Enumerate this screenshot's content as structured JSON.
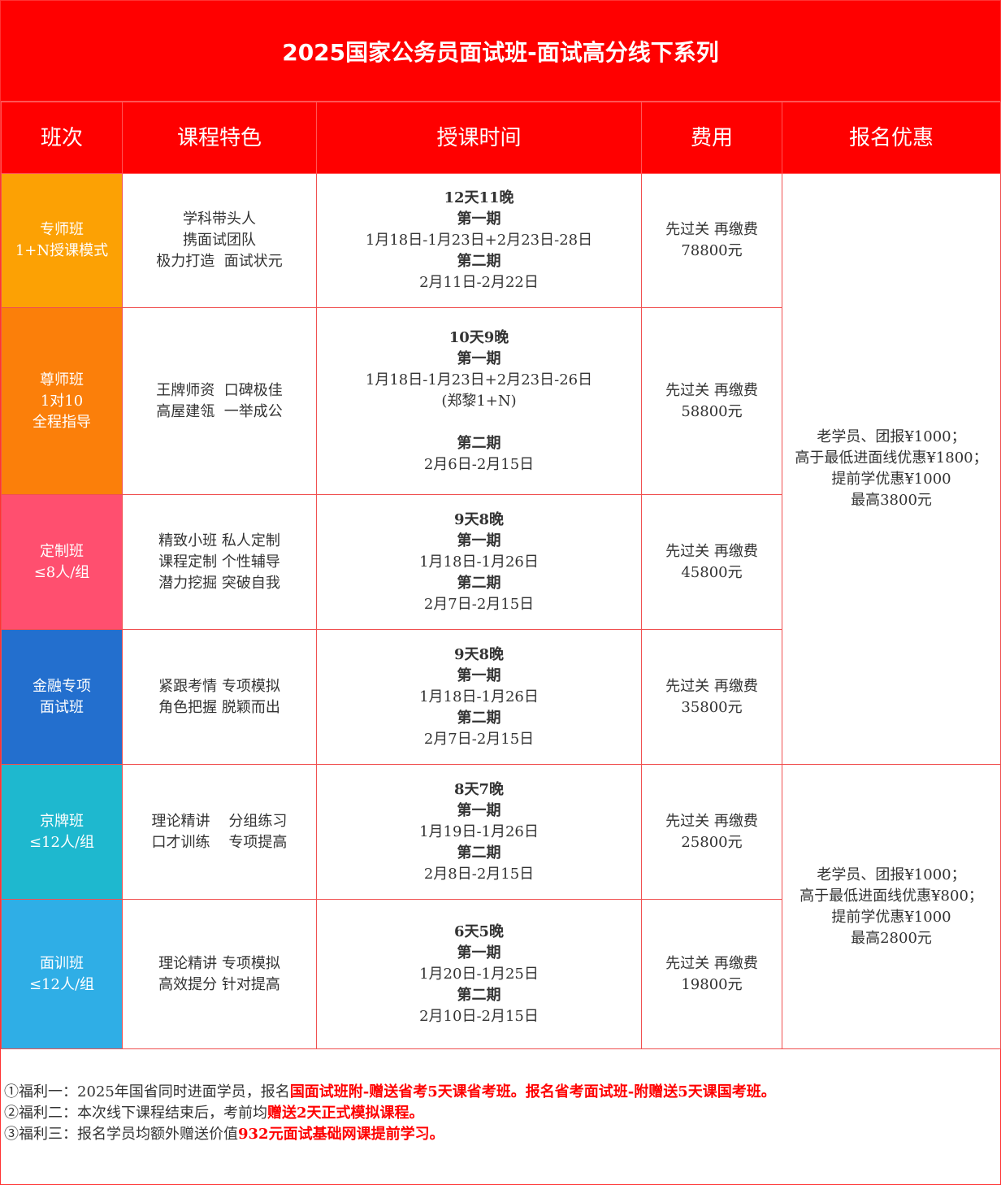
{
  "title": "2025国家公务员面试班-面试高分线下系列",
  "headers": [
    "班次",
    "课程特色",
    "授课时间",
    "费用",
    "报名优惠"
  ],
  "rows": [
    {
      "class": [
        "专师班",
        "1+N授课模式"
      ],
      "color": "#FCA104",
      "features": [
        "学科带头人",
        "携面试团队",
        "极力打造  面试状元"
      ],
      "time": [
        {
          "t": "12天11晚",
          "b": true
        },
        {
          "t": "第一期",
          "b": true
        },
        {
          "t": "1月18日-1月23日+2月23日-28日",
          "b": false
        },
        {
          "t": "第二期",
          "b": true
        },
        {
          "t": "2月11日-2月22日",
          "b": false
        }
      ],
      "fee": [
        "先过关 再缴费",
        "78800元"
      ]
    },
    {
      "class": [
        "尊师班",
        "1对10",
        "全程指导"
      ],
      "color": "#FB7F0A",
      "features": [
        "王牌师资  口碑极佳",
        "高屋建瓴  一举成公"
      ],
      "time": [
        {
          "t": "10天9晚",
          "b": true
        },
        {
          "t": "第一期",
          "b": true
        },
        {
          "t": "1月18日-1月23日+2月23日-26日",
          "b": false
        },
        {
          "t": "(郑黎1+N)",
          "b": false
        },
        {
          "t": " ",
          "b": false
        },
        {
          "t": "第二期",
          "b": true
        },
        {
          "t": "2月6日-2月15日",
          "b": false
        }
      ],
      "fee": [
        "先过关 再缴费",
        "58800元"
      ]
    },
    {
      "class": [
        "定制班",
        "≤8人/组"
      ],
      "color": "#FF4F6F",
      "features": [
        "精致小班 私人定制",
        "课程定制 个性辅导",
        "潜力挖掘 突破自我"
      ],
      "time": [
        {
          "t": "9天8晚",
          "b": true
        },
        {
          "t": "第一期",
          "b": true
        },
        {
          "t": "1月18日-1月26日",
          "b": false
        },
        {
          "t": "第二期",
          "b": true
        },
        {
          "t": "2月7日-2月15日",
          "b": false
        }
      ],
      "fee": [
        "先过关 再缴费",
        "45800元"
      ]
    },
    {
      "class": [
        "金融专项",
        "面试班"
      ],
      "color": "#236FCE",
      "features": [
        "紧跟考情 专项模拟",
        "角色把握 脱颖而出"
      ],
      "time": [
        {
          "t": "9天8晚",
          "b": true
        },
        {
          "t": "第一期",
          "b": true
        },
        {
          "t": "1月18日-1月26日",
          "b": false
        },
        {
          "t": "第二期",
          "b": true
        },
        {
          "t": "2月7日-2月15日",
          "b": false
        }
      ],
      "fee": [
        "先过关 再缴费",
        "35800元"
      ]
    },
    {
      "class": [
        "京牌班",
        "≤12人/组"
      ],
      "color": "#1EB8CF",
      "features": [
        "理论精讲    分组练习",
        "口才训练    专项提高"
      ],
      "time": [
        {
          "t": "8天7晚",
          "b": true
        },
        {
          "t": "第一期",
          "b": true
        },
        {
          "t": "1月19日-1月26日",
          "b": false
        },
        {
          "t": "第二期",
          "b": true
        },
        {
          "t": "2月8日-2月15日",
          "b": false
        }
      ],
      "fee": [
        "先过关 再缴费",
        "25800元"
      ]
    },
    {
      "class": [
        "面训班",
        "≤12人/组"
      ],
      "color": "#2FAEE6",
      "features": [
        "理论精讲 专项模拟",
        "高效提分 针对提高"
      ],
      "time": [
        {
          "t": "6天5晚",
          "b": true
        },
        {
          "t": "第一期",
          "b": true
        },
        {
          "t": "1月20日-1月25日",
          "b": false
        },
        {
          "t": "第二期",
          "b": true
        },
        {
          "t": "2月10日-2月15日",
          "b": false
        }
      ],
      "fee": [
        "先过关 再缴费",
        "19800元"
      ]
    }
  ],
  "promos": [
    [
      "老学员、团报¥1000；",
      "高于最低进面线优惠¥1800；",
      "提前学优惠¥1000",
      "最高3800元"
    ],
    [
      "老学员、团报¥1000；",
      "高于最低进面线优惠¥800；",
      "提前学优惠¥1000",
      "最高2800元"
    ]
  ],
  "benefits": [
    {
      "plain": "①福利一：2025年国省同时进面学员，报名",
      "red": "国面试班附-赠送省考5天课省考班。报名省考面试班-附赠送5天课国考班。"
    },
    {
      "plain": "②福利二：本次线下课程结束后，考前均",
      "red": "赠送2天正式模拟课程。"
    },
    {
      "plain": "③福利三：报名学员均额外赠送价值",
      "red": "932元面试基础网课提前学习。"
    }
  ]
}
